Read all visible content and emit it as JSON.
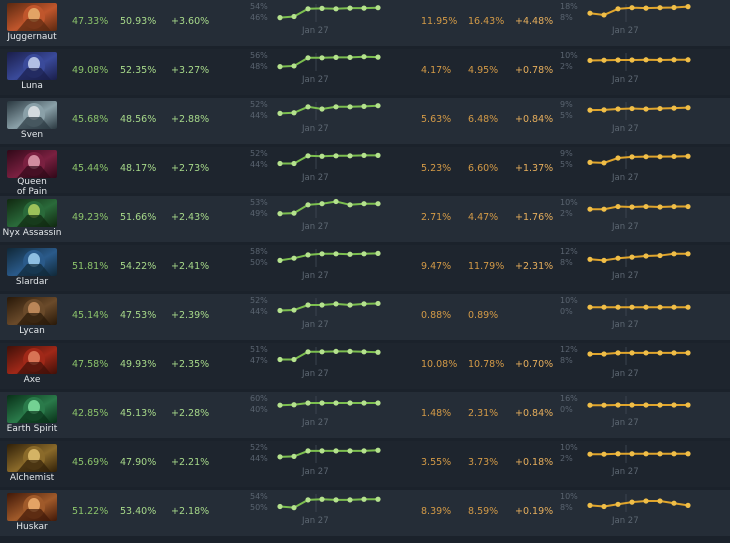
{
  "table": {
    "colors": {
      "winrate": "#8cc46b",
      "pickrate": "#d39a47",
      "win_line": "#7cbf4f",
      "pick_line": "#e0a52c"
    },
    "rows": [
      {
        "hero": "Juggernaut",
        "icon": "juggernaut-portrait-icon",
        "colors": [
          "#c0562c",
          "#e8b070",
          "#5a2810"
        ],
        "wr_before": "47.33%",
        "wr_after": "50.93%",
        "wr_delta": "+3.60%",
        "wr_ticks": [
          "54%",
          "46%"
        ],
        "wr_spark": [
          2.0,
          2.5,
          6.0,
          6.2,
          6.0,
          6.3,
          6.3,
          6.5
        ],
        "pr_before": "11.95%",
        "pr_after": "16.43%",
        "pr_delta": "+4.48%",
        "pr_ticks": [
          "18%",
          "8%"
        ],
        "pr_spark": [
          4.0,
          3.2,
          6.0,
          6.5,
          6.3,
          6.5,
          6.6,
          7.0
        ],
        "date": "Jan 27"
      },
      {
        "hero": "Luna",
        "icon": "luna-portrait-icon",
        "colors": [
          "#3a4a9a",
          "#c8d4f0",
          "#1a1e4a"
        ],
        "wr_before": "49.08%",
        "wr_after": "52.35%",
        "wr_delta": "+3.27%",
        "wr_ticks": [
          "56%",
          "48%"
        ],
        "wr_spark": [
          2.0,
          2.3,
          6.0,
          6.0,
          6.2,
          6.2,
          6.5,
          6.3
        ],
        "pr_before": "4.17%",
        "pr_after": "4.95%",
        "pr_delta": "+0.78%",
        "pr_ticks": [
          "10%",
          "2%"
        ],
        "pr_spark": [
          4.8,
          4.9,
          5.0,
          5.0,
          5.1,
          5.0,
          5.1,
          5.1
        ],
        "date": "Jan 27"
      },
      {
        "hero": "Sven",
        "icon": "sven-portrait-icon",
        "colors": [
          "#8aa0a8",
          "#e0e4e8",
          "#2a3840"
        ],
        "wr_before": "45.68%",
        "wr_after": "48.56%",
        "wr_delta": "+2.88%",
        "wr_ticks": [
          "52%",
          "44%"
        ],
        "wr_spark": [
          3.0,
          3.3,
          6.0,
          5.0,
          6.0,
          6.0,
          6.2,
          6.5
        ],
        "pr_before": "5.63%",
        "pr_after": "6.48%",
        "pr_delta": "+0.84%",
        "pr_ticks": [
          "9%",
          "5%"
        ],
        "pr_spark": [
          4.5,
          4.6,
          5.0,
          5.2,
          5.0,
          5.2,
          5.4,
          5.6
        ],
        "date": "Jan 27"
      },
      {
        "hero": "Queen of Pain",
        "icon": "queen-of-pain-portrait-icon",
        "colors": [
          "#7a2040",
          "#e0a0b0",
          "#300818"
        ],
        "wr_before": "45.44%",
        "wr_after": "48.17%",
        "wr_delta": "+2.73%",
        "wr_ticks": [
          "52%",
          "44%"
        ],
        "wr_spark": [
          2.5,
          2.5,
          6.0,
          5.8,
          6.0,
          6.0,
          6.2,
          6.2
        ],
        "pr_before": "5.23%",
        "pr_after": "6.60%",
        "pr_delta": "+1.37%",
        "pr_ticks": [
          "9%",
          "5%"
        ],
        "pr_spark": [
          3.0,
          2.8,
          5.0,
          5.5,
          5.6,
          5.6,
          5.7,
          5.8
        ],
        "date": "Jan 27"
      },
      {
        "hero": "Nyx Assassin",
        "icon": "nyx-assassin-portrait-icon",
        "colors": [
          "#2a6a3a",
          "#b0d060",
          "#102810"
        ],
        "wr_before": "49.23%",
        "wr_after": "51.66%",
        "wr_delta": "+2.43%",
        "wr_ticks": [
          "53%",
          "49%"
        ],
        "wr_spark": [
          2.0,
          2.2,
          6.0,
          6.5,
          7.5,
          6.0,
          6.5,
          6.5
        ],
        "pr_before": "2.71%",
        "pr_after": "4.47%",
        "pr_delta": "+1.76%",
        "pr_ticks": [
          "10%",
          "2%"
        ],
        "pr_spark": [
          4.0,
          4.0,
          5.2,
          5.0,
          5.2,
          5.0,
          5.2,
          5.2
        ],
        "date": "Jan 27"
      },
      {
        "hero": "Slardar",
        "icon": "slardar-portrait-icon",
        "colors": [
          "#2a5a8a",
          "#a0d0f0",
          "#102838"
        ],
        "wr_before": "51.81%",
        "wr_after": "54.22%",
        "wr_delta": "+2.41%",
        "wr_ticks": [
          "58%",
          "50%"
        ],
        "wr_spark": [
          3.0,
          4.0,
          5.5,
          6.0,
          6.0,
          5.8,
          6.0,
          6.2
        ],
        "pr_before": "9.47%",
        "pr_after": "11.79%",
        "pr_delta": "+2.31%",
        "pr_ticks": [
          "12%",
          "8%"
        ],
        "pr_spark": [
          3.5,
          3.0,
          4.0,
          4.5,
          5.0,
          5.2,
          6.0,
          6.0
        ],
        "date": "Jan 27"
      },
      {
        "hero": "Lycan",
        "icon": "lycan-portrait-icon",
        "colors": [
          "#6a4a2a",
          "#c89060",
          "#281808"
        ],
        "wr_before": "45.14%",
        "wr_after": "47.53%",
        "wr_delta": "+2.39%",
        "wr_ticks": [
          "52%",
          "44%"
        ],
        "wr_spark": [
          2.5,
          2.7,
          5.0,
          5.0,
          5.5,
          5.0,
          5.5,
          5.7
        ],
        "pr_before": "0.88%",
        "pr_after": "0.89%",
        "pr_delta": "",
        "pr_ticks": [
          "10%",
          "0%"
        ],
        "pr_spark": [
          4.0,
          4.0,
          4.0,
          4.0,
          4.0,
          4.0,
          4.0,
          4.0
        ],
        "date": "Jan 27"
      },
      {
        "hero": "Axe",
        "icon": "axe-portrait-icon",
        "colors": [
          "#a02818",
          "#e08060",
          "#401008"
        ],
        "wr_before": "47.58%",
        "wr_after": "49.93%",
        "wr_delta": "+2.35%",
        "wr_ticks": [
          "51%",
          "47%"
        ],
        "wr_spark": [
          2.5,
          2.5,
          6.0,
          6.0,
          6.2,
          6.2,
          6.0,
          5.8
        ],
        "pr_before": "10.08%",
        "pr_after": "10.78%",
        "pr_delta": "+0.70%",
        "pr_ticks": [
          "12%",
          "8%"
        ],
        "pr_spark": [
          5.0,
          5.0,
          5.5,
          5.5,
          5.5,
          5.5,
          5.5,
          5.5
        ],
        "date": "Jan 27"
      },
      {
        "hero": "Earth Spirit",
        "icon": "earth-spirit-portrait-icon",
        "colors": [
          "#2a7a4a",
          "#80e0a0",
          "#083018"
        ],
        "wr_before": "42.85%",
        "wr_after": "45.13%",
        "wr_delta": "+2.28%",
        "wr_ticks": [
          "60%",
          "40%"
        ],
        "wr_spark": [
          4.0,
          4.2,
          5.0,
          5.0,
          5.0,
          5.0,
          5.0,
          5.0
        ],
        "pr_before": "1.48%",
        "pr_after": "2.31%",
        "pr_delta": "+0.84%",
        "pr_ticks": [
          "16%",
          "0%"
        ],
        "pr_spark": [
          4.0,
          4.0,
          4.1,
          4.1,
          4.1,
          4.1,
          4.1,
          4.1
        ],
        "date": "Jan 27"
      },
      {
        "hero": "Alchemist",
        "icon": "alchemist-portrait-icon",
        "colors": [
          "#8a6a2a",
          "#e0c070",
          "#302008"
        ],
        "wr_before": "45.69%",
        "wr_after": "47.90%",
        "wr_delta": "+2.21%",
        "wr_ticks": [
          "52%",
          "44%"
        ],
        "wr_spark": [
          2.8,
          3.0,
          5.5,
          5.5,
          5.5,
          5.5,
          5.5,
          5.8
        ],
        "pr_before": "3.55%",
        "pr_after": "3.73%",
        "pr_delta": "+0.18%",
        "pr_ticks": [
          "10%",
          "2%"
        ],
        "pr_spark": [
          4.0,
          4.0,
          4.2,
          4.2,
          4.2,
          4.2,
          4.2,
          4.2
        ],
        "date": "Jan 27"
      },
      {
        "hero": "Huskar",
        "icon": "huskar-portrait-icon",
        "colors": [
          "#a05a2a",
          "#f0b070",
          "#401808"
        ],
        "wr_before": "51.22%",
        "wr_after": "53.40%",
        "wr_delta": "+2.18%",
        "wr_ticks": [
          "54%",
          "50%"
        ],
        "wr_spark": [
          2.5,
          2.0,
          5.5,
          5.8,
          5.5,
          5.5,
          5.8,
          5.8
        ],
        "pr_before": "8.39%",
        "pr_after": "8.59%",
        "pr_delta": "+0.19%",
        "pr_ticks": [
          "10%",
          "8%"
        ],
        "pr_spark": [
          3.0,
          2.5,
          3.5,
          4.5,
          5.0,
          5.0,
          4.0,
          3.0
        ],
        "date": "Jan 27"
      }
    ]
  }
}
